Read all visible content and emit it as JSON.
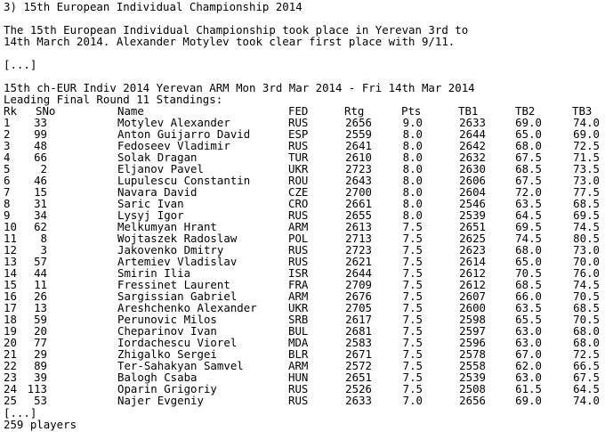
{
  "heading": "3) 15th European Individual Championship 2014",
  "intro_line1": "The 15th European Individual Championship took place in Yerevan 3rd to",
  "intro_line2": "14th March 2014. Alexander Motylev took clear first place with 9/11.",
  "ellipsis_top": "[...]",
  "event_line": "15th ch-EUR Indiv 2014 Yerevan ARM Mon 3rd Mar 2014 - Fri 14th Mar 2014",
  "standings_title": "Leading Final Round 11 Standings:",
  "columns": [
    "Rk",
    "SNo",
    "Name",
    "FED",
    "Rtg",
    "Pts",
    "TB1",
    "TB2",
    "TB3"
  ],
  "rows": [
    [
      "1",
      "33",
      "Motylev Alexander",
      "RUS",
      "2656",
      "9.0",
      "2633",
      "69.0",
      "74.0"
    ],
    [
      "2",
      "99",
      "Anton Guijarro David",
      "ESP",
      "2559",
      "8.0",
      "2644",
      "65.0",
      "69.0"
    ],
    [
      "3",
      "48",
      "Fedoseev Vladimir",
      "RUS",
      "2641",
      "8.0",
      "2642",
      "68.0",
      "72.5"
    ],
    [
      "4",
      "66",
      "Solak Dragan",
      "TUR",
      "2610",
      "8.0",
      "2632",
      "67.5",
      "71.5"
    ],
    [
      "5",
      "2",
      "Eljanov Pavel",
      "UKR",
      "2723",
      "8.0",
      "2630",
      "68.5",
      "73.5"
    ],
    [
      "6",
      "46",
      "Lupulescu Constantin",
      "ROU",
      "2643",
      "8.0",
      "2606",
      "67.5",
      "73.0"
    ],
    [
      "7",
      "15",
      "Navara David",
      "CZE",
      "2700",
      "8.0",
      "2604",
      "72.0",
      "77.5"
    ],
    [
      "8",
      "31",
      "Saric Ivan",
      "CRO",
      "2661",
      "8.0",
      "2546",
      "63.5",
      "68.5"
    ],
    [
      "9",
      "34",
      "Lysyj Igor",
      "RUS",
      "2655",
      "8.0",
      "2539",
      "64.5",
      "69.5"
    ],
    [
      "10",
      "62",
      "Melkumyan Hrant",
      "ARM",
      "2613",
      "7.5",
      "2651",
      "69.5",
      "74.5"
    ],
    [
      "11",
      "8",
      "Wojtaszek Radoslaw",
      "POL",
      "2713",
      "7.5",
      "2625",
      "74.5",
      "80.5"
    ],
    [
      "12",
      "3",
      "Jakovenko Dmitry",
      "RUS",
      "2723",
      "7.5",
      "2623",
      "68.0",
      "73.0"
    ],
    [
      "13",
      "57",
      "Artemiev Vladislav",
      "RUS",
      "2621",
      "7.5",
      "2614",
      "65.0",
      "70.0"
    ],
    [
      "14",
      "44",
      "Smirin Ilia",
      "ISR",
      "2644",
      "7.5",
      "2612",
      "70.5",
      "76.0"
    ],
    [
      "15",
      "11",
      "Fressinet Laurent",
      "FRA",
      "2709",
      "7.5",
      "2612",
      "68.5",
      "74.5"
    ],
    [
      "16",
      "26",
      "Sargissian Gabriel",
      "ARM",
      "2676",
      "7.5",
      "2607",
      "66.0",
      "70.5"
    ],
    [
      "17",
      "13",
      "Areshchenko Alexander",
      "UKR",
      "2705",
      "7.5",
      "2600",
      "63.5",
      "68.5"
    ],
    [
      "18",
      "59",
      "Perunovic Milos",
      "SRB",
      "2617",
      "7.5",
      "2598",
      "65.5",
      "70.5"
    ],
    [
      "19",
      "20",
      "Cheparinov Ivan",
      "BUL",
      "2681",
      "7.5",
      "2597",
      "63.0",
      "68.0"
    ],
    [
      "20",
      "77",
      "Iordachescu Viorel",
      "MDA",
      "2583",
      "7.5",
      "2596",
      "63.0",
      "68.0"
    ],
    [
      "21",
      "29",
      "Zhigalko Sergei",
      "BLR",
      "2671",
      "7.5",
      "2578",
      "67.0",
      "72.5"
    ],
    [
      "22",
      "89",
      "Ter-Sahakyan Samvel",
      "ARM",
      "2572",
      "7.5",
      "2558",
      "62.0",
      "66.5"
    ],
    [
      "23",
      "39",
      "Balogh Csaba",
      "HUN",
      "2651",
      "7.5",
      "2539",
      "63.0",
      "67.5"
    ],
    [
      "24",
      "113",
      "Oparin Grigoriy",
      "RUS",
      "2526",
      "7.5",
      "2508",
      "61.5",
      "64.5"
    ],
    [
      "25",
      "53",
      "Najer Evgeniy",
      "RUS",
      "2633",
      "7.0",
      "2656",
      "69.0",
      "74.0"
    ]
  ],
  "ellipsis_bottom": "[...]",
  "player_count": "259 players"
}
